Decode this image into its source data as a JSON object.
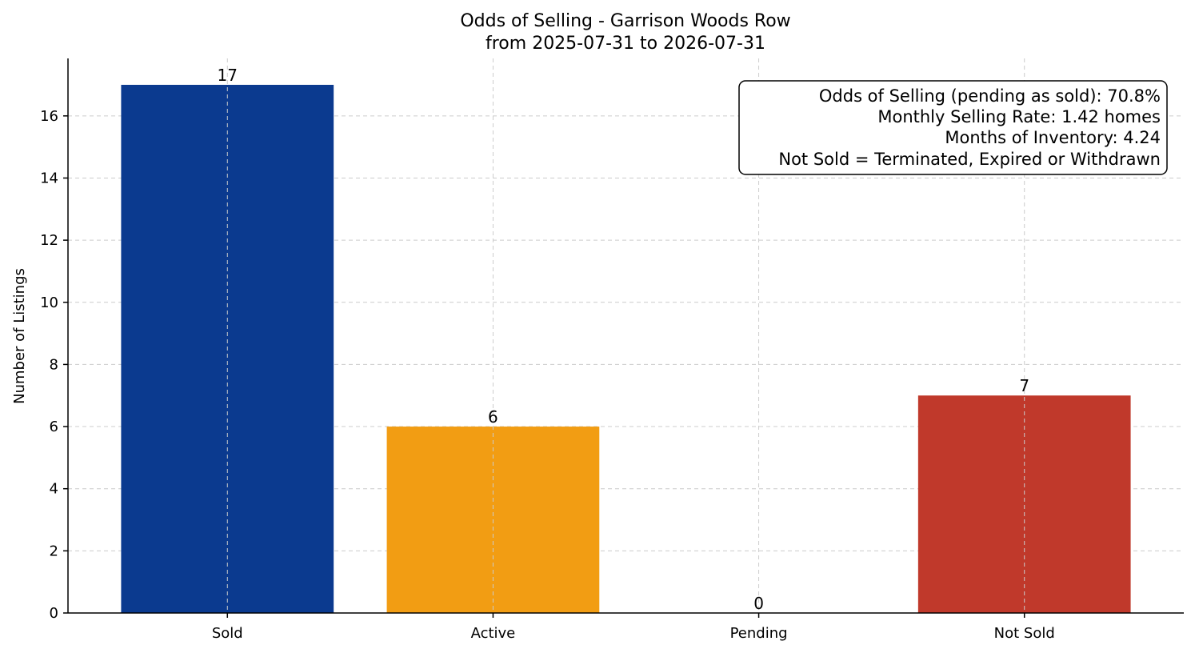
{
  "chart_data": {
    "type": "bar",
    "title": "Odds of Selling - Garrison Woods Row",
    "subtitle": "from 2025-07-31 to 2026-07-31",
    "xlabel": "",
    "ylabel": "Number of Listings",
    "categories": [
      "Sold",
      "Active",
      "Pending",
      "Not Sold"
    ],
    "values": [
      17,
      6,
      0,
      7
    ],
    "colors": [
      "#0b3a8f",
      "#f29d13",
      "#7f7f7f",
      "#c0392b"
    ],
    "ylim": [
      0,
      17.85
    ],
    "yticks": [
      0,
      2,
      4,
      6,
      8,
      10,
      12,
      14,
      16
    ],
    "grid": true,
    "legend": "none",
    "info_box": {
      "placement": "top-right",
      "lines": [
        "Odds of Selling (pending as sold): 70.8%",
        "Monthly Selling Rate: 1.42 homes",
        "Months of Inventory: 4.24",
        "Not Sold = Terminated, Expired or Withdrawn"
      ]
    }
  }
}
